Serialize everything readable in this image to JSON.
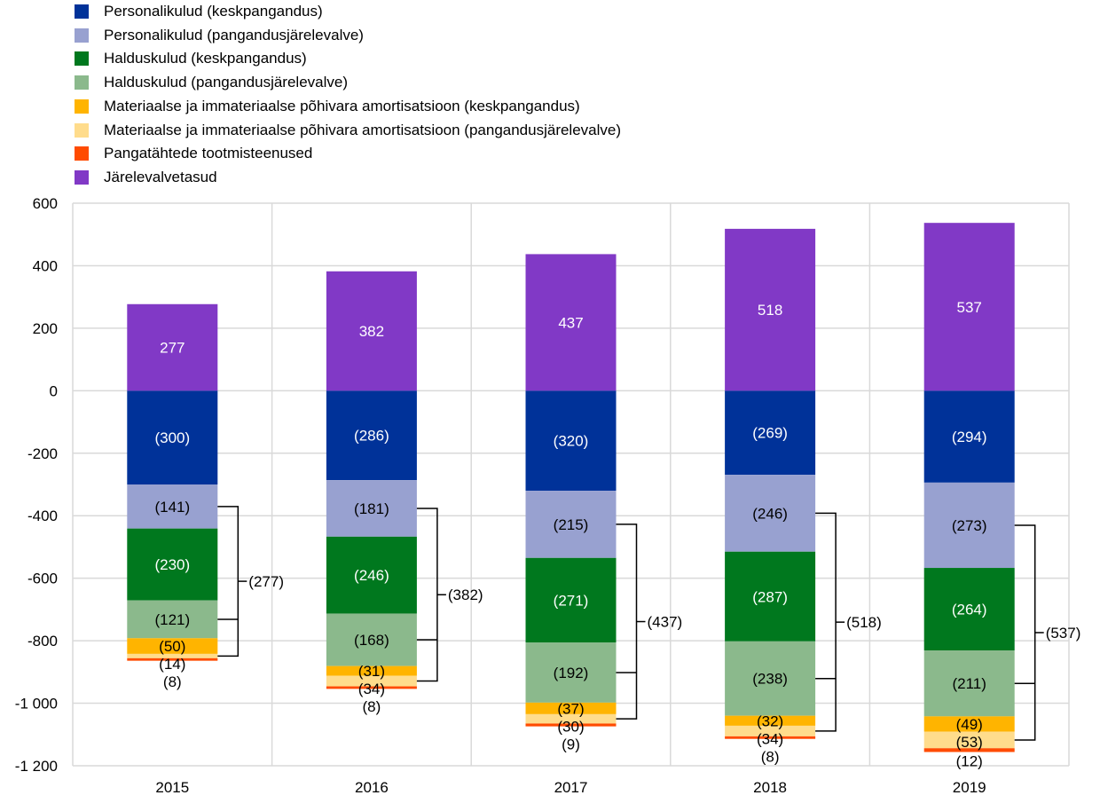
{
  "chart_data": {
    "type": "bar",
    "stacked": true,
    "categories": [
      "2015",
      "2016",
      "2017",
      "2018",
      "2019"
    ],
    "ylim": [
      -1200,
      600
    ],
    "yticks": [
      600,
      400,
      200,
      0,
      -200,
      -400,
      -600,
      -800,
      -1000,
      -1200
    ],
    "ytick_labels": [
      "600",
      "400",
      "200",
      "0",
      "-200",
      "-400",
      "-600",
      "-800",
      "-1 000",
      "-1 200"
    ],
    "grid": true,
    "legend_placement": "top-left",
    "series": [
      {
        "name": "Personalikulud (keskpangandus)",
        "color": "#003299",
        "values": [
          -300,
          -286,
          -320,
          -269,
          -294
        ],
        "labels": [
          "(300)",
          "(286)",
          "(320)",
          "(269)",
          "(294)"
        ]
      },
      {
        "name": "Personalikulud (pangandusjärelevalve)",
        "color": "#98A1D0",
        "values": [
          -141,
          -181,
          -215,
          -246,
          -273
        ],
        "labels": [
          "(141)",
          "(181)",
          "(215)",
          "(246)",
          "(273)"
        ]
      },
      {
        "name": "Halduskulud (keskpangandus)",
        "color": "#00781E",
        "values": [
          -230,
          -246,
          -271,
          -287,
          -264
        ],
        "labels": [
          "(230)",
          "(246)",
          "(271)",
          "(287)",
          "(264)"
        ]
      },
      {
        "name": "Halduskulud (pangandusjärelevalve)",
        "color": "#8BB98C",
        "values": [
          -121,
          -168,
          -192,
          -238,
          -211
        ],
        "labels": [
          "(121)",
          "(168)",
          "(192)",
          "(238)",
          "(211)"
        ]
      },
      {
        "name": "Materiaalse ja immateriaalse põhivara amortisatsioon (keskpangandus)",
        "color": "#FFB400",
        "values": [
          -50,
          -31,
          -37,
          -32,
          -49
        ],
        "labels": [
          "(50)",
          "(31)",
          "(37)",
          "(32)",
          "(49)"
        ]
      },
      {
        "name": "Materiaalse ja immateriaalse põhivara amortisatsioon (pangandusjärelevalve)",
        "color": "#FFDC8C",
        "values": [
          -14,
          -34,
          -30,
          -34,
          -53
        ],
        "labels": [
          "(14)",
          "(34)",
          "(30)",
          "(34)",
          "(53)"
        ]
      },
      {
        "name": "Pangatähtede tootmisteenused",
        "color": "#FF4B00",
        "values": [
          -8,
          -8,
          -9,
          -8,
          -12
        ],
        "labels": [
          "(8)",
          "(8)",
          "(9)",
          "(8)",
          "(12)"
        ]
      },
      {
        "name": "Järelevalvetasud",
        "color": "#8139C6",
        "values": [
          277,
          382,
          437,
          518,
          537
        ],
        "labels": [
          "277",
          "382",
          "437",
          "518",
          "537"
        ]
      }
    ],
    "bracket_totals": [
      "(277)",
      "(382)",
      "(437)",
      "(518)",
      "(537)"
    ]
  }
}
